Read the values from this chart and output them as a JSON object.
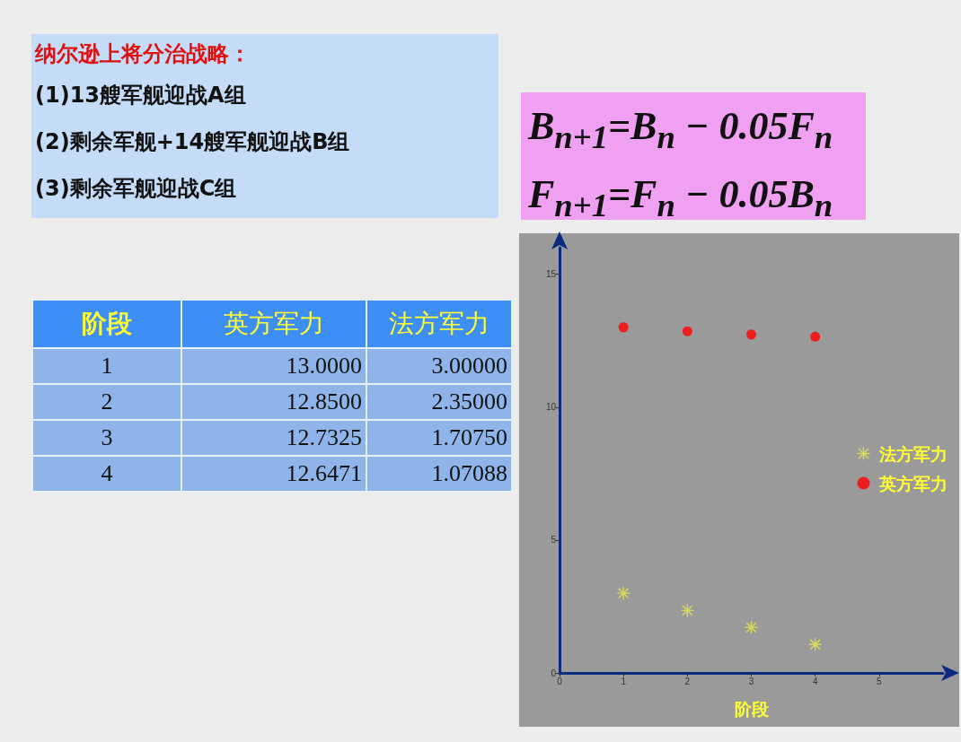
{
  "chart_data": [
    {
      "type": "heatmap",
      "title": "纳尔逊上将分治战略：",
      "annotations": [
        "(1)13艘军舰迎战A组",
        "(2)剩余军舰+14艘军舰迎战B组",
        "(3)剩余军舰迎战C组",
        "B$_{n+1}$=B$_{n}$ − 0.05F$_{n}$",
        "F$_{n+1}$=F$_{n}$ − 0.05B$_{n}$"
      ],
      "ylabel": "阶段",
      "categories": [
        "英方军力",
        "法方军力"
      ],
      "y_categories": [
        "1",
        "2",
        "3",
        "4"
      ],
      "cells": [
        [
          13.0,
          3.0
        ],
        [
          12.85,
          2.35
        ],
        [
          12.7325,
          1.7075
        ],
        [
          12.6471,
          1.07088
        ]
      ],
      "cell_labels": [
        [
          "13.0000",
          "3.00000"
        ],
        [
          "12.8500",
          "2.35000"
        ],
        [
          "12.7325",
          "1.70750"
        ],
        [
          "12.6471",
          "1.07088"
        ]
      ]
    },
    {
      "type": "scatter",
      "xlabel": "阶段",
      "x": [
        1,
        2,
        3,
        4
      ],
      "series": [
        {
          "name": "英方军力",
          "color": "#ff0000",
          "marker": "circle",
          "values": [
            13.0,
            12.85,
            12.73,
            12.65
          ]
        },
        {
          "name": "法方军力",
          "color": "#e8e84a",
          "marker": "star",
          "values": [
            3.0,
            2.35,
            1.71,
            1.07
          ]
        }
      ],
      "xlim": [
        0,
        6
      ],
      "xticks": [
        0,
        1,
        2,
        3,
        4,
        5
      ],
      "ylim": [
        0,
        16
      ],
      "yticks": [
        0,
        5,
        10,
        15
      ],
      "grid": false,
      "legend": "right"
    }
  ]
}
